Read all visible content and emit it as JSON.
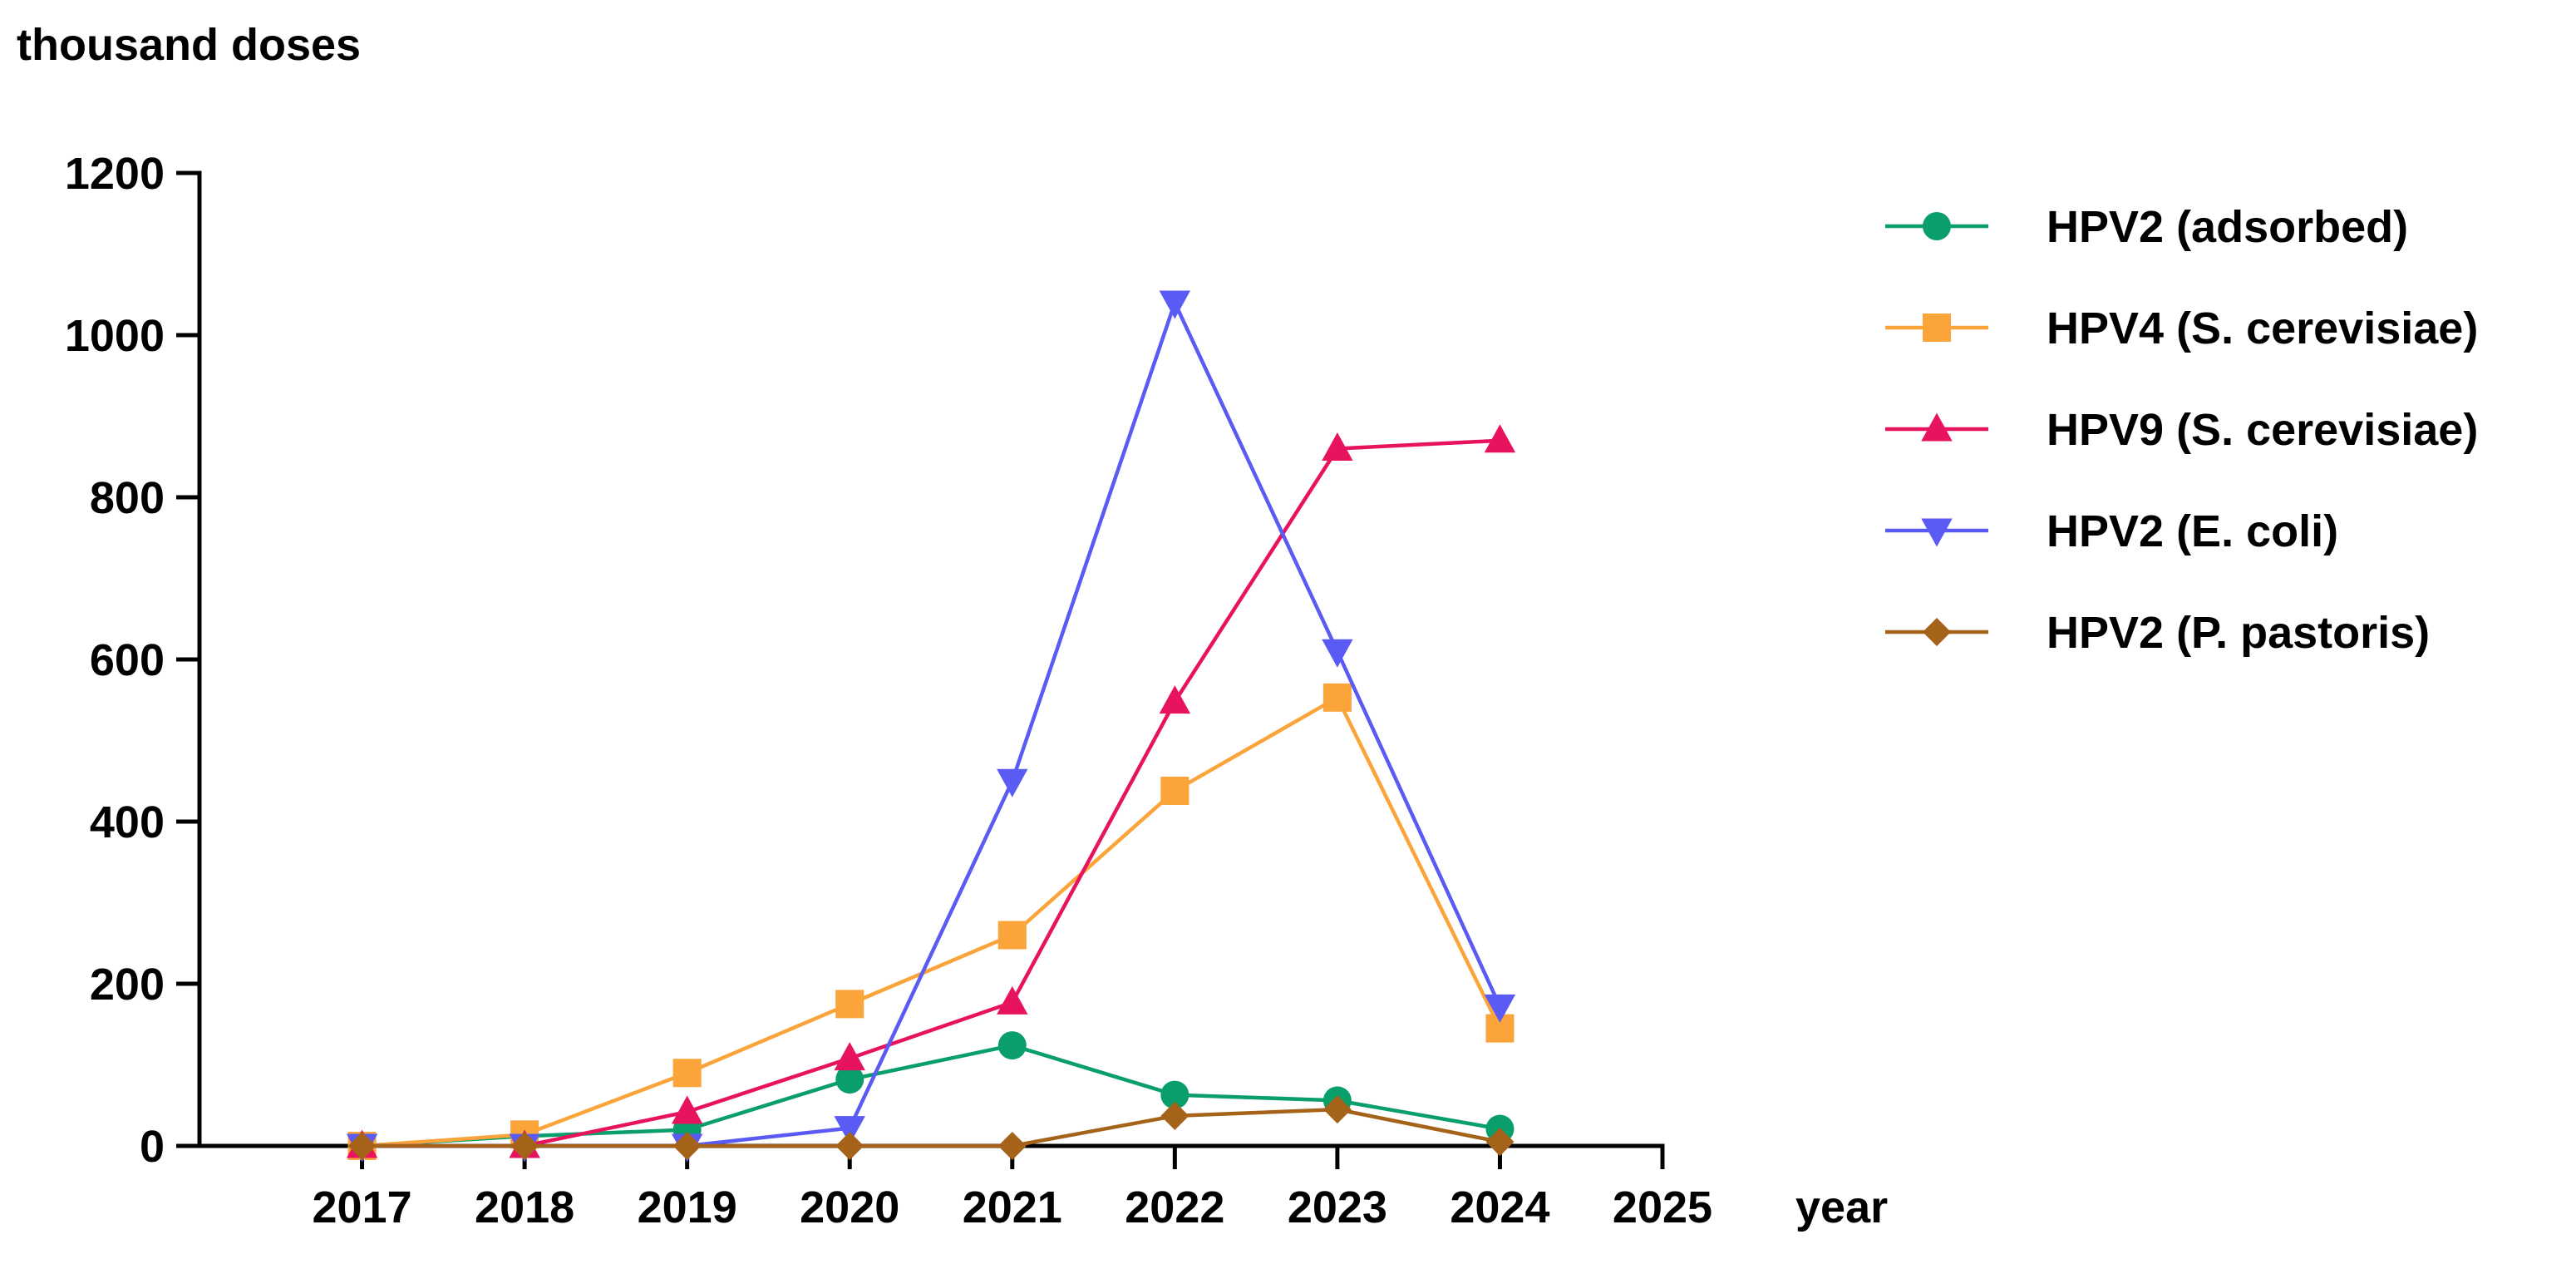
{
  "chart_data": {
    "type": "line",
    "title": "",
    "ylabel": "thousand doses",
    "xlabel": "year",
    "x": [
      2017,
      2018,
      2019,
      2020,
      2021,
      2022,
      2023,
      2024
    ],
    "x_ticks": [
      "2017",
      "2018",
      "2019",
      "2020",
      "2021",
      "2022",
      "2023",
      "2024",
      "2025"
    ],
    "y_ticks": [
      "0",
      "200",
      "400",
      "600",
      "800",
      "1000",
      "1200"
    ],
    "xlim": [
      2016,
      2025
    ],
    "ylim": [
      0,
      1200
    ],
    "grid": false,
    "legend_position": "right",
    "series": [
      {
        "name": "HPV2 (adsorbed)",
        "color": "#0a9e6b",
        "marker": "circle",
        "values": [
          0,
          12,
          20,
          82,
          124,
          63,
          56,
          21
        ]
      },
      {
        "name": "HPV4 (S. cerevisiae)",
        "color": "#faa43a",
        "marker": "square",
        "values": [
          0,
          14,
          90,
          175,
          260,
          438,
          553,
          145
        ]
      },
      {
        "name": "HPV9 (S. cerevisiae)",
        "color": "#e8135e",
        "marker": "triangle-up",
        "values": [
          0,
          0,
          42,
          108,
          177,
          548,
          860,
          870
        ]
      },
      {
        "name": "HPV2 (E. coli)",
        "color": "#5a5af5",
        "marker": "triangle-down",
        "values": [
          0,
          0,
          0,
          22,
          450,
          1040,
          610,
          172
        ]
      },
      {
        "name": "HPV2 (P. pastoris)",
        "color": "#a5631a",
        "marker": "diamond",
        "values": [
          0,
          0,
          0,
          0,
          0,
          37,
          45,
          5
        ]
      }
    ]
  }
}
